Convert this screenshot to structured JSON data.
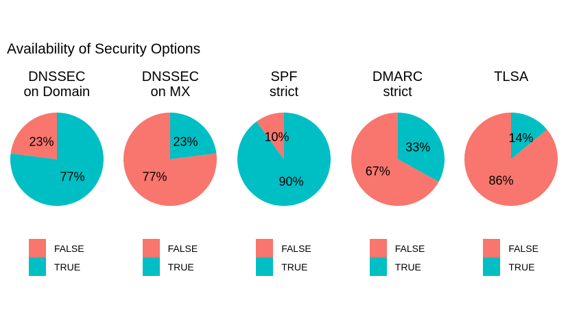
{
  "title": "Availability of Security Options",
  "colors": {
    "background": "#FFFFFF",
    "text": "#000000",
    "false_hex": "#F8766D",
    "true_hex": "#00BFC4"
  },
  "legend": {
    "false_label": "FALSE",
    "true_label": "TRUE",
    "position": "bottom-left of each pie"
  },
  "chart_data": [
    {
      "type": "pie",
      "title": "DNSSEC on Domain",
      "title_lines": [
        "DNSSEC",
        "on Domain"
      ],
      "start_angle_deg": 0,
      "direction": "clockwise",
      "legend": [
        "FALSE",
        "TRUE"
      ],
      "slices": [
        {
          "label": "TRUE",
          "value_pct": 77,
          "color": "#00BFC4",
          "data_label": "77%"
        },
        {
          "label": "FALSE",
          "value_pct": 23,
          "color": "#F8766D",
          "data_label": "23%"
        }
      ]
    },
    {
      "type": "pie",
      "title": "DNSSEC on MX",
      "title_lines": [
        "DNSSEC",
        "on MX"
      ],
      "start_angle_deg": 0,
      "direction": "clockwise",
      "legend": [
        "FALSE",
        "TRUE"
      ],
      "slices": [
        {
          "label": "TRUE",
          "value_pct": 23,
          "color": "#00BFC4",
          "data_label": "23%"
        },
        {
          "label": "FALSE",
          "value_pct": 77,
          "color": "#F8766D",
          "data_label": "77%"
        }
      ]
    },
    {
      "type": "pie",
      "title": "SPF strict",
      "title_lines": [
        "SPF",
        "strict"
      ],
      "start_angle_deg": 0,
      "direction": "clockwise",
      "legend": [
        "FALSE",
        "TRUE"
      ],
      "slices": [
        {
          "label": "TRUE",
          "value_pct": 90,
          "color": "#00BFC4",
          "data_label": "90%"
        },
        {
          "label": "FALSE",
          "value_pct": 10,
          "color": "#F8766D",
          "data_label": "10%"
        }
      ]
    },
    {
      "type": "pie",
      "title": "DMARC strict",
      "title_lines": [
        "DMARC",
        "strict"
      ],
      "start_angle_deg": 0,
      "direction": "clockwise",
      "legend": [
        "FALSE",
        "TRUE"
      ],
      "slices": [
        {
          "label": "TRUE",
          "value_pct": 33,
          "color": "#00BFC4",
          "data_label": "33%"
        },
        {
          "label": "FALSE",
          "value_pct": 67,
          "color": "#F8766D",
          "data_label": "67%"
        }
      ]
    },
    {
      "type": "pie",
      "title": "TLSA",
      "title_lines": [
        "TLSA"
      ],
      "start_angle_deg": 0,
      "direction": "clockwise",
      "legend": [
        "FALSE",
        "TRUE"
      ],
      "slices": [
        {
          "label": "TRUE",
          "value_pct": 14,
          "color": "#00BFC4",
          "data_label": "14%"
        },
        {
          "label": "FALSE",
          "value_pct": 86,
          "color": "#F8766D",
          "data_label": "86%"
        }
      ]
    }
  ]
}
